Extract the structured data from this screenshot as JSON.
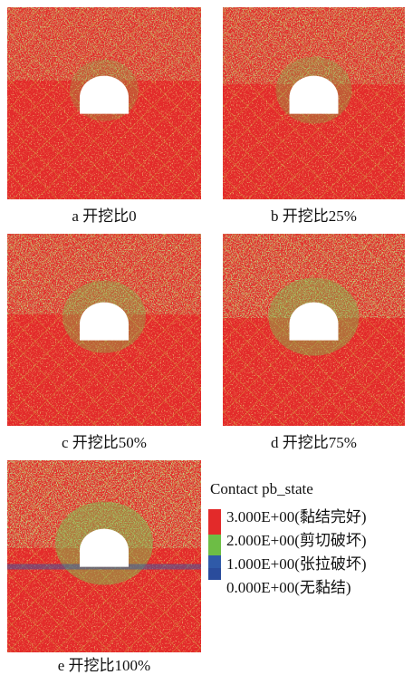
{
  "panels": [
    {
      "caption": "a  开挖比0"
    },
    {
      "caption": "b  开挖比25%"
    },
    {
      "caption": "c  开挖比50%"
    },
    {
      "caption": "d  开挖比75%"
    },
    {
      "caption": "e  开挖比100%"
    }
  ],
  "legend": {
    "title": "Contact pb_state",
    "items": [
      {
        "label": "3.000E+00(黏结完好)",
        "color": "#e32a2a"
      },
      {
        "label": "2.000E+00(剪切破坏)",
        "color": "#6dbd45"
      },
      {
        "label": "1.000E+00(张拉破坏)",
        "color": "#2f5aa8"
      },
      {
        "label": "0.000E+00(无黏结)",
        "color": "#2a4c9c"
      }
    ]
  }
}
